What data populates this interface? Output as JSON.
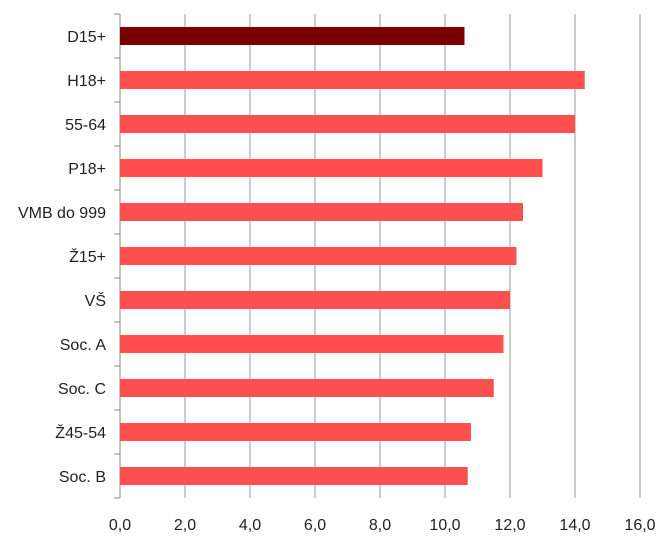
{
  "chart_data": {
    "type": "bar",
    "orientation": "horizontal",
    "title": "",
    "xlabel": "",
    "ylabel": "",
    "categories": [
      "D15+",
      "H18+",
      "55-64",
      "P18+",
      "VMB do 999",
      "Ž15+",
      "VŠ",
      "Soc. A",
      "Soc. C",
      "Ž45-54",
      "Soc. B"
    ],
    "values": [
      10.6,
      14.3,
      14.0,
      13.0,
      12.4,
      12.2,
      12.0,
      11.8,
      11.5,
      10.8,
      10.7
    ],
    "xlim": [
      0,
      16
    ],
    "xticks": [
      "0,0",
      "2,0",
      "4,0",
      "6,0",
      "8,0",
      "10,0",
      "12,0",
      "14,0",
      "16,0"
    ],
    "grid": "vertical",
    "legend": "none",
    "colors": {
      "highlight": "#7a0000",
      "bar": "#ff5050",
      "grid": "#999999",
      "axis": "#888888"
    },
    "highlight_index": 0
  }
}
